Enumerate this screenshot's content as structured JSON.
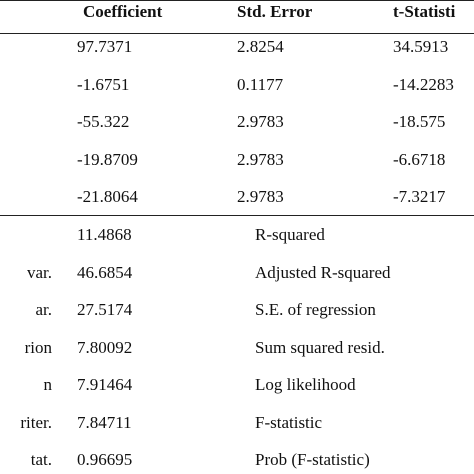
{
  "table": {
    "header": [
      "Coefficient",
      "Std. Error",
      "t-Statisti"
    ],
    "rows": [
      [
        "97.7371",
        "2.8254",
        "34.5913"
      ],
      [
        "-1.6751",
        "0.1177",
        "-14.2283"
      ],
      [
        "-55.322",
        "2.9783",
        "-18.575"
      ],
      [
        "-19.8709",
        "2.9783",
        "-6.6718"
      ],
      [
        "-21.8064",
        "2.9783",
        "-7.3217"
      ]
    ]
  },
  "stats": {
    "left_labels": [
      "var.",
      "ar.",
      "rion",
      "n",
      "riter.",
      "tat."
    ],
    "values": [
      "11.4868",
      "46.6854",
      "27.5174",
      "7.80092",
      "7.91464",
      "7.84711",
      "0.96695"
    ],
    "right_labels": [
      "R-squared",
      "Adjusted R-squared",
      "S.E. of regression",
      "Sum squared resid.",
      "Log likelihood",
      "F-statistic",
      "Prob (F-statistic)"
    ]
  }
}
